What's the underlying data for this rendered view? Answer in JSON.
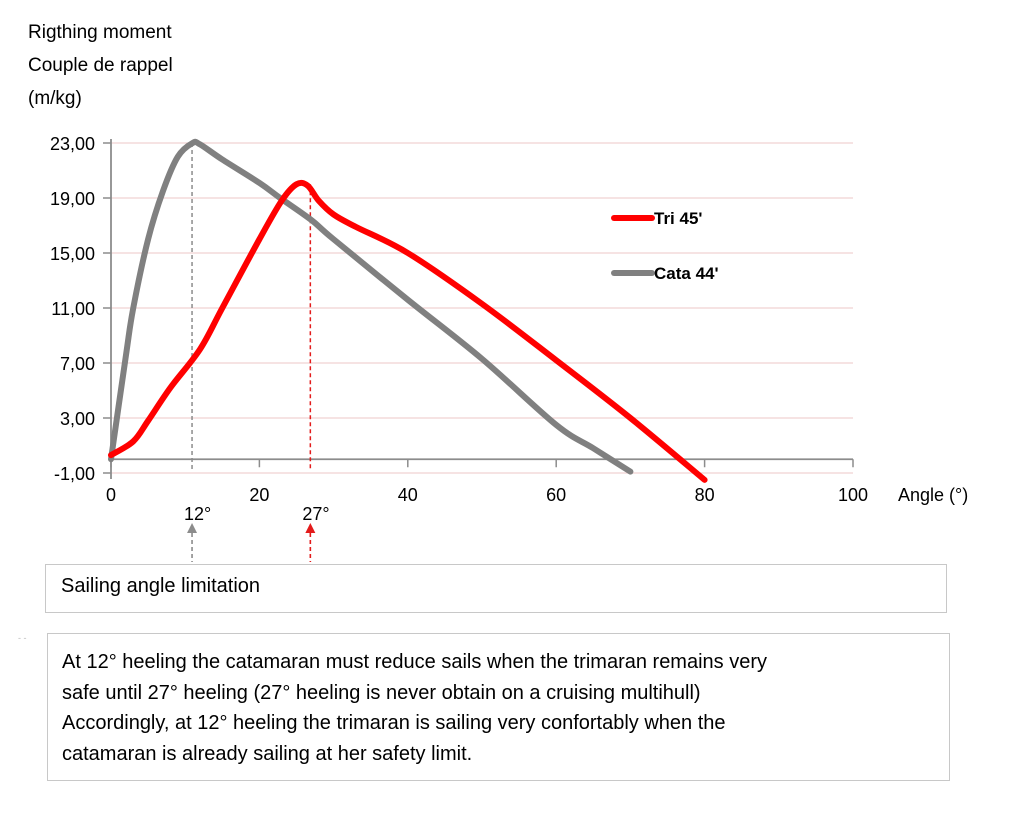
{
  "chart_data": {
    "type": "line",
    "title": "",
    "ylabel": [
      "Rigthing moment",
      "Couple de rappel",
      "(m/kg)"
    ],
    "xlabel": "Angle (°)",
    "xlim": [
      0,
      100
    ],
    "ylim": [
      -1,
      23
    ],
    "x_ticks": [
      "0",
      "20",
      "40",
      "60",
      "80",
      "100"
    ],
    "x_tick_values": [
      0,
      20,
      40,
      60,
      80,
      100
    ],
    "y_ticks": [
      "23,00",
      "19,00",
      "15,00",
      "11,00",
      "7,00",
      "3,00",
      "-1,00"
    ],
    "y_tick_values": [
      23,
      19,
      15,
      11,
      7,
      3,
      -1
    ],
    "grid": "horizontal",
    "legend_position": "right",
    "series": [
      {
        "name": "Tri 45'",
        "color": "#ff0000",
        "x": [
          0,
          3,
          5,
          8,
          12,
          15,
          20,
          23,
          25,
          26.5,
          28,
          30,
          33,
          40,
          50,
          60,
          70,
          80
        ],
        "y": [
          0.3,
          1.3,
          2.8,
          5.2,
          8.0,
          11.0,
          16.0,
          18.8,
          20.0,
          19.9,
          18.8,
          17.8,
          16.9,
          15.0,
          11.3,
          7.2,
          3.0,
          -1.5
        ]
      },
      {
        "name": "Cata 44'",
        "color": "#808080",
        "x": [
          0,
          2,
          3,
          5,
          7,
          9,
          11,
          12,
          15,
          20,
          22.8,
          27,
          30,
          40,
          50,
          60,
          65,
          70
        ],
        "y": [
          0,
          7.5,
          11.0,
          16.0,
          19.5,
          22.0,
          23.0,
          22.9,
          21.8,
          20.1,
          19.0,
          17.4,
          16.0,
          11.6,
          7.3,
          2.5,
          0.8,
          -0.9
        ]
      }
    ],
    "annotations": [
      {
        "label": "12°",
        "x": 12,
        "color": "#8c8c8c",
        "series": "Cata 44'"
      },
      {
        "label": "27°",
        "x": 27,
        "color": "#e31b1b",
        "series": "Tri 45'"
      }
    ]
  },
  "notes": {
    "box1": "Sailing angle limitation",
    "box2_lines": [
      "At 12° heeling  the catamaran must reduce sails when the trimaran remains very",
      "safe until 27° heeling (27° heeling is never obtain on a cruising multihull)",
      "Accordingly, at 12° heeling the trimaran is sailing very confortably when the",
      "catamaran is already sailing at her safety limit."
    ]
  }
}
